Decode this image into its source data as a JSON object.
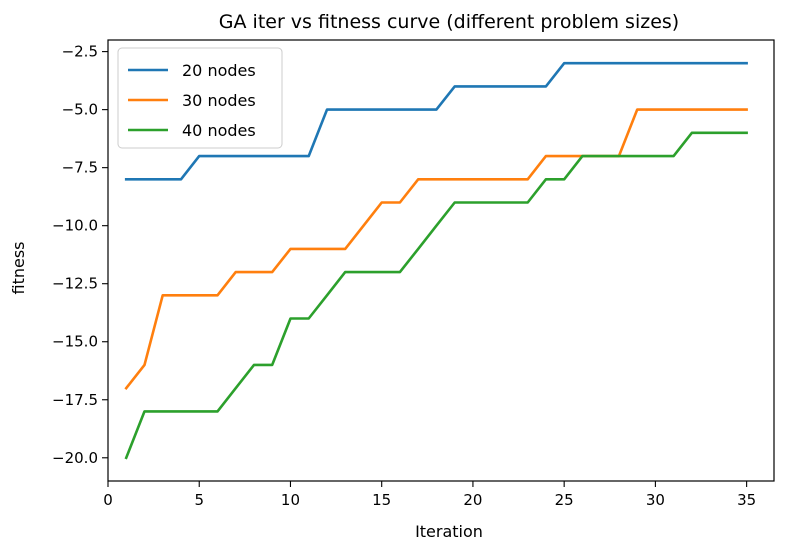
{
  "chart_data": {
    "type": "line",
    "title": "GA iter vs fitness curve (different problem sizes)",
    "xlabel": "Iteration",
    "ylabel": "fitness",
    "xlim": [
      0,
      36.5
    ],
    "ylim": [
      -21,
      -2
    ],
    "xticks": [
      0,
      5,
      10,
      15,
      20,
      25,
      30,
      35
    ],
    "yticks": [
      -20.0,
      -17.5,
      -15.0,
      -12.5,
      -10.0,
      -7.5,
      -5.0,
      -2.5
    ],
    "xtick_labels": [
      "0",
      "5",
      "10",
      "15",
      "20",
      "25",
      "30",
      "35"
    ],
    "ytick_labels": [
      "−20.0",
      "−17.5",
      "−15.0",
      "−12.5",
      "−10.0",
      "−7.5",
      "−5.0",
      "−2.5"
    ],
    "grid": false,
    "legend_position": "top-left",
    "x": [
      1,
      2,
      3,
      4,
      5,
      6,
      7,
      8,
      9,
      10,
      11,
      12,
      13,
      14,
      15,
      16,
      17,
      18,
      19,
      20,
      21,
      22,
      23,
      24,
      25,
      26,
      27,
      28,
      29,
      30,
      31,
      32,
      33,
      34,
      35
    ],
    "series": [
      {
        "name": "20 nodes",
        "color": "#1f77b4",
        "values": [
          -8,
          -8,
          -8,
          -8,
          -7,
          -7,
          -7,
          -7,
          -7,
          -7,
          -7,
          -5,
          -5,
          -5,
          -5,
          -5,
          -5,
          -5,
          -4,
          -4,
          -4,
          -4,
          -4,
          -4,
          -3,
          -3,
          -3,
          -3,
          -3,
          -3,
          -3,
          -3,
          -3,
          -3,
          -3
        ]
      },
      {
        "name": "30 nodes",
        "color": "#ff7f0e",
        "values": [
          -17,
          -16,
          -13,
          -13,
          -13,
          -13,
          -12,
          -12,
          -12,
          -11,
          -11,
          -11,
          -11,
          -10,
          -9,
          -9,
          -8,
          -8,
          -8,
          -8,
          -8,
          -8,
          -8,
          -7,
          -7,
          -7,
          -7,
          -7,
          -5,
          -5,
          -5,
          -5,
          -5,
          -5,
          -5
        ]
      },
      {
        "name": "40 nodes",
        "color": "#2ca02c",
        "values": [
          -20,
          -18,
          -18,
          -18,
          -18,
          -18,
          -17,
          -16,
          -16,
          -14,
          -14,
          -13,
          -12,
          -12,
          -12,
          -12,
          -11,
          -10,
          -9,
          -9,
          -9,
          -9,
          -9,
          -8,
          -8,
          -7,
          -7,
          -7,
          -7,
          -7,
          -7,
          -6,
          -6,
          -6,
          -6
        ]
      }
    ]
  }
}
